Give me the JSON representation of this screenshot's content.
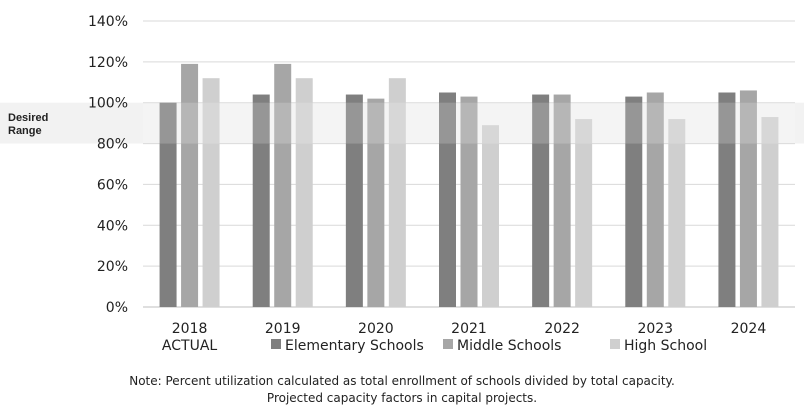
{
  "chart_data": {
    "type": "bar",
    "categories": [
      "2018\nACTUAL",
      "2019",
      "2020",
      "2021",
      "2022",
      "2023",
      "2024"
    ],
    "series": [
      {
        "name": "Elementary Schools",
        "color": "#7f7f7f",
        "values": [
          100,
          104,
          104,
          105,
          104,
          103,
          105
        ]
      },
      {
        "name": "Middle Schools",
        "color": "#a6a6a6",
        "values": [
          119,
          119,
          102,
          103,
          104,
          105,
          106
        ]
      },
      {
        "name": "High School",
        "color": "#cfcfcf",
        "values": [
          112,
          112,
          112,
          89,
          92,
          92,
          93
        ]
      }
    ],
    "ylim": [
      0,
      140
    ],
    "yticks": [
      "0%",
      "20%",
      "40%",
      "60%",
      "80%",
      "100%",
      "120%",
      "140%"
    ],
    "grid": true,
    "legend": "bottom",
    "desired_range": {
      "label": "Desired Range",
      "from": 80,
      "to": 100,
      "color": "#f2f2f2"
    }
  },
  "note": {
    "line1": "Note:  Percent utilization calculated as total enrollment of schools divided by total capacity.",
    "line2": "Projected capacity factors in capital projects."
  }
}
